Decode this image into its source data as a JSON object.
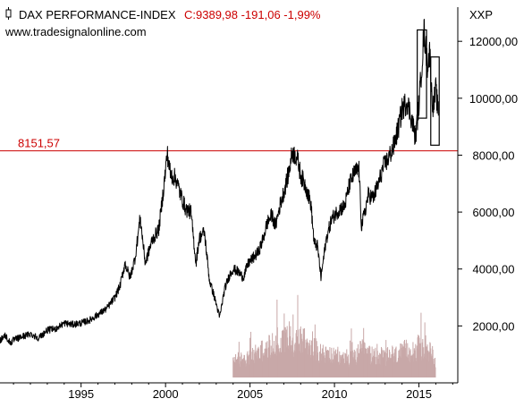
{
  "header": {
    "instrument_name": "DAX PERFORMANCE-INDEX",
    "quote": "C:9389,98 -191,06 -1,99%",
    "source": "www.tradesignalonline.com",
    "axis_symbol": "XXP"
  },
  "colors": {
    "price_line": "#000000",
    "support_line": "#cc0000",
    "quote_text": "#cc0000",
    "volume_bars": "#c8a8a8",
    "axis": "#000000",
    "background": "#ffffff"
  },
  "icons": {
    "chart_toggle": "candlestick-icon"
  },
  "chart_data": {
    "type": "line",
    "title": "DAX PERFORMANCE-INDEX",
    "xlabel": "",
    "ylabel": "",
    "x_tick_labels": [
      "1995",
      "2000",
      "2005",
      "2010",
      "2015"
    ],
    "x_ticks": [
      1995,
      2000,
      2005,
      2010,
      2015
    ],
    "y_tick_labels": [
      "2000,00",
      "4000,00",
      "6000,00",
      "8000,00",
      "10000,00",
      "12000,00"
    ],
    "y_ticks": [
      2000,
      4000,
      6000,
      8000,
      10000,
      12000
    ],
    "xlim": [
      1990.2,
      2017.3
    ],
    "ylim": [
      0,
      13200
    ],
    "grid": false,
    "series": [
      {
        "values": [
          [
            1990.2,
            1500
          ],
          [
            1990.5,
            1680
          ],
          [
            1990.8,
            1400
          ],
          [
            1991.0,
            1500
          ],
          [
            1991.5,
            1620
          ],
          [
            1992.0,
            1720
          ],
          [
            1992.5,
            1580
          ],
          [
            1993.0,
            1850
          ],
          [
            1993.5,
            1900
          ],
          [
            1994.0,
            2100
          ],
          [
            1994.5,
            2050
          ],
          [
            1995.0,
            2100
          ],
          [
            1995.5,
            2200
          ],
          [
            1996.0,
            2400
          ],
          [
            1996.5,
            2600
          ],
          [
            1997.0,
            3000
          ],
          [
            1997.3,
            3400
          ],
          [
            1997.6,
            4200
          ],
          [
            1997.9,
            3700
          ],
          [
            1998.2,
            4400
          ],
          [
            1998.5,
            5800
          ],
          [
            1998.8,
            4200
          ],
          [
            1999.2,
            5000
          ],
          [
            1999.6,
            5400
          ],
          [
            1999.9,
            6900
          ],
          [
            2000.1,
            8065
          ],
          [
            2000.3,
            7300
          ],
          [
            2000.6,
            7200
          ],
          [
            2000.9,
            6600
          ],
          [
            2001.2,
            6100
          ],
          [
            2001.5,
            6000
          ],
          [
            2001.8,
            4200
          ],
          [
            2002.0,
            5100
          ],
          [
            2002.3,
            5300
          ],
          [
            2002.6,
            3600
          ],
          [
            2002.9,
            3000
          ],
          [
            2003.2,
            2300
          ],
          [
            2003.5,
            3300
          ],
          [
            2003.8,
            3800
          ],
          [
            2004.0,
            4000
          ],
          [
            2004.3,
            3900
          ],
          [
            2004.6,
            3700
          ],
          [
            2004.9,
            4200
          ],
          [
            2005.2,
            4400
          ],
          [
            2005.5,
            4600
          ],
          [
            2005.8,
            5100
          ],
          [
            2006.0,
            5600
          ],
          [
            2006.3,
            5900
          ],
          [
            2006.5,
            5500
          ],
          [
            2006.8,
            6300
          ],
          [
            2007.0,
            6700
          ],
          [
            2007.3,
            7400
          ],
          [
            2007.5,
            8100
          ],
          [
            2007.8,
            7900
          ],
          [
            2008.0,
            7300
          ],
          [
            2008.3,
            6900
          ],
          [
            2008.6,
            6300
          ],
          [
            2008.8,
            4900
          ],
          [
            2009.0,
            4800
          ],
          [
            2009.2,
            3700
          ],
          [
            2009.5,
            5000
          ],
          [
            2009.8,
            5700
          ],
          [
            2010.0,
            5900
          ],
          [
            2010.3,
            6100
          ],
          [
            2010.6,
            6200
          ],
          [
            2010.9,
            7000
          ],
          [
            2011.2,
            7400
          ],
          [
            2011.45,
            7500
          ],
          [
            2011.6,
            5500
          ],
          [
            2011.8,
            6000
          ],
          [
            2012.0,
            6600
          ],
          [
            2012.3,
            6500
          ],
          [
            2012.6,
            7000
          ],
          [
            2012.9,
            7600
          ],
          [
            2013.2,
            7900
          ],
          [
            2013.5,
            8300
          ],
          [
            2013.8,
            9000
          ],
          [
            2014.0,
            9600
          ],
          [
            2014.3,
            9900
          ],
          [
            2014.6,
            9200
          ],
          [
            2014.8,
            8600
          ],
          [
            2015.0,
            9800
          ],
          [
            2015.2,
            11400
          ],
          [
            2015.3,
            12390
          ],
          [
            2015.4,
            11800
          ],
          [
            2015.5,
            11200
          ],
          [
            2015.65,
            11600
          ],
          [
            2015.75,
            10200
          ],
          [
            2015.85,
            9700
          ],
          [
            2016.0,
            10300
          ],
          [
            2016.15,
            9390
          ]
        ]
      }
    ],
    "volume": [
      [
        2004.0,
        800
      ],
      [
        2004.2,
        1100
      ],
      [
        2004.4,
        900
      ],
      [
        2004.6,
        1200
      ],
      [
        2004.8,
        1000
      ],
      [
        2005.0,
        1300
      ],
      [
        2005.2,
        1100
      ],
      [
        2005.4,
        1500
      ],
      [
        2005.6,
        1200
      ],
      [
        2005.8,
        1700
      ],
      [
        2006.0,
        1400
      ],
      [
        2006.2,
        1900
      ],
      [
        2006.4,
        1600
      ],
      [
        2006.6,
        2200
      ],
      [
        2006.8,
        1800
      ],
      [
        2007.0,
        2600
      ],
      [
        2007.2,
        2100
      ],
      [
        2007.4,
        2400
      ],
      [
        2007.6,
        2000
      ],
      [
        2007.8,
        2300
      ],
      [
        2008.0,
        1900
      ],
      [
        2008.2,
        2100
      ],
      [
        2008.4,
        1800
      ],
      [
        2008.6,
        2000
      ],
      [
        2008.8,
        1600
      ],
      [
        2009.0,
        1500
      ],
      [
        2009.2,
        1300
      ],
      [
        2009.4,
        1400
      ],
      [
        2009.6,
        1200
      ],
      [
        2009.8,
        1300
      ],
      [
        2010.0,
        1100
      ],
      [
        2010.2,
        1200
      ],
      [
        2010.4,
        1000
      ],
      [
        2010.6,
        1100
      ],
      [
        2010.8,
        1000
      ],
      [
        2011.0,
        1200
      ],
      [
        2011.2,
        1100
      ],
      [
        2011.4,
        1300
      ],
      [
        2011.6,
        1500
      ],
      [
        2011.8,
        1400
      ],
      [
        2012.0,
        1300
      ],
      [
        2012.2,
        1200
      ],
      [
        2012.4,
        1300
      ],
      [
        2012.6,
        1100
      ],
      [
        2012.8,
        1200
      ],
      [
        2013.0,
        1100
      ],
      [
        2013.2,
        1200
      ],
      [
        2013.4,
        1300
      ],
      [
        2013.6,
        1200
      ],
      [
        2013.8,
        1400
      ],
      [
        2014.0,
        1300
      ],
      [
        2014.2,
        1500
      ],
      [
        2014.4,
        1400
      ],
      [
        2014.6,
        1600
      ],
      [
        2014.8,
        1500
      ],
      [
        2015.0,
        1700
      ],
      [
        2015.2,
        1600
      ],
      [
        2015.4,
        1500
      ],
      [
        2015.6,
        1400
      ],
      [
        2015.8,
        1300
      ],
      [
        2016.0,
        900
      ]
    ],
    "volume_scale_max": 13200,
    "annotations": [
      {
        "type": "horizontal_line",
        "value": 8151.57,
        "label": "8151,57"
      },
      {
        "type": "rectangle",
        "x_range": [
          2014.9,
          2015.45
        ],
        "y_range": [
          9300,
          12400
        ]
      },
      {
        "type": "rectangle",
        "x_range": [
          2015.7,
          2016.2
        ],
        "y_range": [
          8350,
          11450
        ]
      }
    ]
  }
}
